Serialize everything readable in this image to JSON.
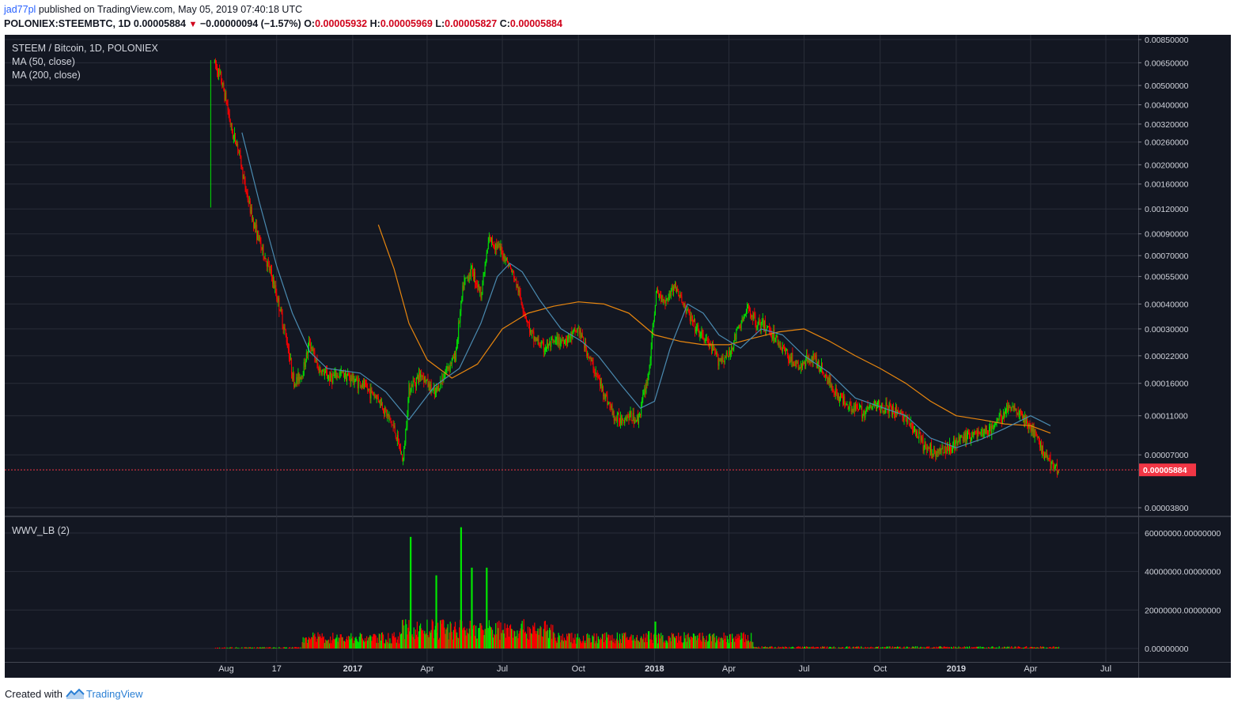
{
  "header": {
    "author": "jad77pl",
    "published_text": "published on TradingView.com, May 05, 2019 07:40:18 UTC",
    "symbol": "POLONIEX:STEEMBTC, 1D",
    "price": "0.00005884",
    "change": "−0.00000094 (−1.57%)",
    "o_label": "O:",
    "o_value": "0.00005932",
    "h_label": "H:",
    "h_value": "0.00005969",
    "l_label": "L:",
    "l_value": "0.00005827",
    "c_label": "C:",
    "c_value": "0.00005884"
  },
  "legend": {
    "title": "STEEM / Bitcoin, 1D, POLONIEX",
    "ma50": "MA (50, close)",
    "ma200": "MA (200, close)",
    "volume": "WWV_LB (2)"
  },
  "footer": {
    "created_with": "Created with",
    "brand": "TradingView"
  },
  "colors": {
    "background": "#131722",
    "up": "#00e600",
    "down": "#ff0000",
    "ma50": "#4a8ab0",
    "ma200": "#e8860e",
    "last_price": "#f23645",
    "grid": "#2a2e39",
    "axis_text": "#d1d4dc"
  },
  "chart_data": [
    {
      "type": "candlestick",
      "title": "STEEM / Bitcoin, 1D, POLONIEX",
      "scale": "log",
      "y_ticks": [
        "0.00850000",
        "0.00650000",
        "0.00500000",
        "0.00400000",
        "0.00320000",
        "0.00260000",
        "0.00200000",
        "0.00160000",
        "0.00120000",
        "0.00090000",
        "0.00070000",
        "0.00055000",
        "0.00040000",
        "0.00030000",
        "0.00022000",
        "0.00016000",
        "0.00011000",
        "0.00007000",
        "0.00003800"
      ],
      "x_ticks": [
        "Aug",
        "17",
        "2017",
        "Apr",
        "Jul",
        "Oct",
        "2018",
        "Apr",
        "Jul",
        "Oct",
        "2019",
        "Apr",
        "Jul"
      ],
      "last_price_label": "0.00005884",
      "last_price": 5.884e-05,
      "price_path": [
        [
          "2016-07-18",
          0.0065
        ],
        [
          "2016-07-25",
          0.0055
        ],
        [
          "2016-08-01",
          0.0042
        ],
        [
          "2016-08-08",
          0.0029
        ],
        [
          "2016-08-15",
          0.0025
        ],
        [
          "2016-08-22",
          0.0017
        ],
        [
          "2016-09-01",
          0.0011
        ],
        [
          "2016-09-12",
          0.00078
        ],
        [
          "2016-09-25",
          0.00055
        ],
        [
          "2016-10-05",
          0.00038
        ],
        [
          "2016-10-15",
          0.00024
        ],
        [
          "2016-10-22",
          0.00016
        ],
        [
          "2016-11-01",
          0.00018
        ],
        [
          "2016-11-10",
          0.00026
        ],
        [
          "2016-11-20",
          0.00019
        ],
        [
          "2016-12-05",
          0.00017
        ],
        [
          "2016-12-20",
          0.00018
        ],
        [
          "2017-01-10",
          0.00016
        ],
        [
          "2017-02-01",
          0.000135
        ],
        [
          "2017-02-20",
          9.5e-05
        ],
        [
          "2017-03-03",
          6.5e-05
        ],
        [
          "2017-03-10",
          0.00015
        ],
        [
          "2017-03-25",
          0.00018
        ],
        [
          "2017-04-10",
          0.00014
        ],
        [
          "2017-04-25",
          0.00019
        ],
        [
          "2017-05-05",
          0.00022
        ],
        [
          "2017-05-15",
          0.0005
        ],
        [
          "2017-05-25",
          0.0006
        ],
        [
          "2017-06-05",
          0.00045
        ],
        [
          "2017-06-15",
          0.00085
        ],
        [
          "2017-06-25",
          0.00078
        ],
        [
          "2017-07-05",
          0.00068
        ],
        [
          "2017-07-15",
          0.00055
        ],
        [
          "2017-07-25",
          0.0004
        ],
        [
          "2017-08-05",
          0.00028
        ],
        [
          "2017-08-20",
          0.00024
        ],
        [
          "2017-09-05",
          0.00026
        ],
        [
          "2017-09-20",
          0.00027
        ],
        [
          "2017-10-01",
          0.0003
        ],
        [
          "2017-10-15",
          0.00021
        ],
        [
          "2017-10-30",
          0.00015
        ],
        [
          "2017-11-15",
          0.000105
        ],
        [
          "2017-12-01",
          0.00011
        ],
        [
          "2017-12-12",
          0.000105
        ],
        [
          "2017-12-25",
          0.00018
        ],
        [
          "2018-01-03",
          0.00045
        ],
        [
          "2018-01-15",
          0.00042
        ],
        [
          "2018-01-25",
          0.0005
        ],
        [
          "2018-02-05",
          0.0004
        ],
        [
          "2018-02-20",
          0.0003
        ],
        [
          "2018-03-05",
          0.00026
        ],
        [
          "2018-03-20",
          0.00021
        ],
        [
          "2018-04-01",
          0.00022
        ],
        [
          "2018-04-12",
          0.0003
        ],
        [
          "2018-04-25",
          0.00038
        ],
        [
          "2018-05-05",
          0.00032
        ],
        [
          "2018-05-20",
          0.0003
        ],
        [
          "2018-06-05",
          0.00024
        ],
        [
          "2018-06-25",
          0.00019
        ],
        [
          "2018-07-10",
          0.00022
        ],
        [
          "2018-07-25",
          0.00018
        ],
        [
          "2018-08-10",
          0.00014
        ],
        [
          "2018-08-25",
          0.000125
        ],
        [
          "2018-09-10",
          0.000115
        ],
        [
          "2018-09-25",
          0.000125
        ],
        [
          "2018-10-10",
          0.00012
        ],
        [
          "2018-10-25",
          0.000115
        ],
        [
          "2018-11-10",
          9.5e-05
        ],
        [
          "2018-11-25",
          7.5e-05
        ],
        [
          "2018-12-10",
          7.2e-05
        ],
        [
          "2018-12-25",
          7.8e-05
        ],
        [
          "2019-01-10",
          8.5e-05
        ],
        [
          "2019-01-25",
          9e-05
        ],
        [
          "2019-02-10",
          9.2e-05
        ],
        [
          "2019-02-25",
          0.00011
        ],
        [
          "2019-03-10",
          0.000125
        ],
        [
          "2019-03-25",
          0.000105
        ],
        [
          "2019-04-05",
          9e-05
        ],
        [
          "2019-04-20",
          6.8e-05
        ],
        [
          "2019-05-05",
          5.884e-05
        ]
      ],
      "ma50_path": [
        [
          "2016-08-20",
          0.0029
        ],
        [
          "2016-09-10",
          0.0013
        ],
        [
          "2016-10-01",
          0.00062
        ],
        [
          "2016-10-20",
          0.00036
        ],
        [
          "2016-11-10",
          0.00023
        ],
        [
          "2016-12-01",
          0.00019
        ],
        [
          "2017-01-10",
          0.00018
        ],
        [
          "2017-02-10",
          0.000145
        ],
        [
          "2017-03-10",
          0.000105
        ],
        [
          "2017-04-10",
          0.000155
        ],
        [
          "2017-05-10",
          0.00019
        ],
        [
          "2017-06-05",
          0.00032
        ],
        [
          "2017-06-25",
          0.00055
        ],
        [
          "2017-07-10",
          0.00064
        ],
        [
          "2017-07-25",
          0.00058
        ],
        [
          "2017-08-15",
          0.00042
        ],
        [
          "2017-09-10",
          0.0003
        ],
        [
          "2017-10-05",
          0.00026
        ],
        [
          "2017-10-25",
          0.00022
        ],
        [
          "2017-11-20",
          0.00016
        ],
        [
          "2017-12-15",
          0.00012
        ],
        [
          "2018-01-01",
          0.00013
        ],
        [
          "2018-01-20",
          0.00024
        ],
        [
          "2018-02-10",
          0.0004
        ],
        [
          "2018-03-01",
          0.00036
        ],
        [
          "2018-03-20",
          0.00028
        ],
        [
          "2018-04-15",
          0.00024
        ],
        [
          "2018-05-10",
          0.0003
        ],
        [
          "2018-06-05",
          0.00028
        ],
        [
          "2018-07-01",
          0.00022
        ],
        [
          "2018-08-01",
          0.00018
        ],
        [
          "2018-09-01",
          0.000135
        ],
        [
          "2018-10-01",
          0.000122
        ],
        [
          "2018-11-01",
          0.00011
        ],
        [
          "2018-12-01",
          8.5e-05
        ],
        [
          "2019-01-01",
          7.6e-05
        ],
        [
          "2019-02-01",
          8.4e-05
        ],
        [
          "2019-03-01",
          9.5e-05
        ],
        [
          "2019-04-01",
          0.00011
        ],
        [
          "2019-04-25",
          9.8e-05
        ]
      ],
      "ma200_path": [
        [
          "2017-02-01",
          0.001
        ],
        [
          "2017-02-20",
          0.0006
        ],
        [
          "2017-03-10",
          0.00032
        ],
        [
          "2017-04-01",
          0.00021
        ],
        [
          "2017-05-01",
          0.00017
        ],
        [
          "2017-06-01",
          0.0002
        ],
        [
          "2017-07-01",
          0.0003
        ],
        [
          "2017-08-01",
          0.00036
        ],
        [
          "2017-09-01",
          0.00039
        ],
        [
          "2017-10-01",
          0.00041
        ],
        [
          "2017-11-01",
          0.0004
        ],
        [
          "2017-12-01",
          0.00036
        ],
        [
          "2018-01-01",
          0.00028
        ],
        [
          "2018-02-01",
          0.00026
        ],
        [
          "2018-03-01",
          0.00025
        ],
        [
          "2018-04-01",
          0.00025
        ],
        [
          "2018-05-01",
          0.00027
        ],
        [
          "2018-06-01",
          0.00029
        ],
        [
          "2018-07-01",
          0.0003
        ],
        [
          "2018-08-01",
          0.00026
        ],
        [
          "2018-09-01",
          0.00022
        ],
        [
          "2018-10-01",
          0.00019
        ],
        [
          "2018-11-01",
          0.00016
        ],
        [
          "2018-12-01",
          0.00013
        ],
        [
          "2019-01-01",
          0.00011
        ],
        [
          "2019-02-01",
          0.000105
        ],
        [
          "2019-03-01",
          0.0001
        ],
        [
          "2019-04-01",
          9.8e-05
        ],
        [
          "2019-04-25",
          9e-05
        ]
      ]
    },
    {
      "type": "bar",
      "title": "WWV_LB (2)",
      "y_ticks": [
        "60000000.00000000",
        "40000000.00000000",
        "20000000.00000000",
        "0.00000000"
      ],
      "ylim": [
        0,
        65000000
      ],
      "spikes": [
        [
          "2017-03-12",
          58000000,
          "up"
        ],
        [
          "2017-04-12",
          38000000,
          "up"
        ],
        [
          "2017-05-12",
          63000000,
          "up"
        ],
        [
          "2017-05-25",
          42000000,
          "up"
        ],
        [
          "2017-06-12",
          42000000,
          "up"
        ],
        [
          "2017-05-05",
          10000000,
          "down"
        ],
        [
          "2017-04-20",
          15000000,
          "down"
        ],
        [
          "2018-01-02",
          14000000,
          "up"
        ],
        [
          "2017-12-25",
          9000000,
          "up"
        ]
      ]
    }
  ]
}
